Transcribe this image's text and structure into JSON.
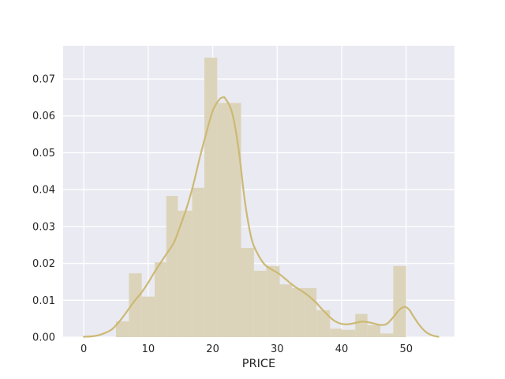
{
  "chart_data": {
    "type": "histogram",
    "title": "",
    "xlabel": "PRICE",
    "ylabel": "",
    "xlim": [
      -3.2,
      57.5
    ],
    "ylim": [
      0,
      0.079
    ],
    "grid": true,
    "x_ticks": [
      0,
      10,
      20,
      30,
      40,
      50
    ],
    "y_ticks": [
      0.0,
      0.01,
      0.02,
      0.03,
      0.04,
      0.05,
      0.06,
      0.07
    ],
    "y_tick_labels": [
      "0.00",
      "0.01",
      "0.02",
      "0.03",
      "0.04",
      "0.05",
      "0.06",
      "0.07"
    ],
    "bar_color": "#dcd4ba",
    "line_color": "#ccb974",
    "background_color": "#eaeaf2",
    "bins": [
      {
        "x0": 5.0,
        "x1": 7.0,
        "density": 0.0043
      },
      {
        "x0": 7.0,
        "x1": 9.0,
        "density": 0.0173
      },
      {
        "x0": 9.0,
        "x1": 11.0,
        "density": 0.011
      },
      {
        "x0": 11.0,
        "x1": 12.8,
        "density": 0.0203
      },
      {
        "x0": 12.8,
        "x1": 14.6,
        "density": 0.0383
      },
      {
        "x0": 14.6,
        "x1": 16.8,
        "density": 0.0343
      },
      {
        "x0": 16.8,
        "x1": 18.7,
        "density": 0.0405
      },
      {
        "x0": 18.7,
        "x1": 20.7,
        "density": 0.0758
      },
      {
        "x0": 20.7,
        "x1": 24.4,
        "density": 0.0635
      },
      {
        "x0": 24.4,
        "x1": 26.4,
        "density": 0.0242
      },
      {
        "x0": 26.4,
        "x1": 28.3,
        "density": 0.018
      },
      {
        "x0": 28.3,
        "x1": 30.4,
        "density": 0.0193
      },
      {
        "x0": 30.4,
        "x1": 32.3,
        "density": 0.0143
      },
      {
        "x0": 32.3,
        "x1": 34.2,
        "density": 0.0133
      },
      {
        "x0": 34.2,
        "x1": 36.1,
        "density": 0.0133
      },
      {
        "x0": 36.1,
        "x1": 38.2,
        "density": 0.0073
      },
      {
        "x0": 38.2,
        "x1": 40.0,
        "density": 0.0023
      },
      {
        "x0": 40.0,
        "x1": 42.1,
        "density": 0.002
      },
      {
        "x0": 42.1,
        "x1": 44.0,
        "density": 0.0063
      },
      {
        "x0": 44.0,
        "x1": 46.0,
        "density": 0.0033
      },
      {
        "x0": 46.0,
        "x1": 48.0,
        "density": 0.001
      },
      {
        "x0": 48.0,
        "x1": 50.0,
        "density": 0.0193
      }
    ],
    "kde": {
      "x": [
        0,
        2,
        4,
        5,
        6,
        7,
        8,
        9,
        10,
        11,
        12,
        13,
        14,
        15,
        16,
        17,
        18,
        19,
        20,
        21,
        21.6,
        22,
        23,
        24,
        25,
        26,
        27,
        28,
        29,
        30,
        31,
        32,
        33,
        34,
        35,
        36,
        37,
        38,
        39,
        40,
        41,
        42,
        43,
        44,
        45,
        46,
        47,
        48,
        49,
        49.8,
        50.5,
        51,
        52,
        53,
        54,
        55
      ],
      "y": [
        0.0001,
        0.0004,
        0.0017,
        0.0032,
        0.0053,
        0.0077,
        0.0101,
        0.0122,
        0.0148,
        0.0177,
        0.0204,
        0.023,
        0.0257,
        0.0303,
        0.0353,
        0.0414,
        0.0487,
        0.0553,
        0.0614,
        0.0644,
        0.065,
        0.0646,
        0.0609,
        0.0512,
        0.0367,
        0.0268,
        0.0225,
        0.0198,
        0.0185,
        0.0175,
        0.0162,
        0.0147,
        0.0134,
        0.0123,
        0.011,
        0.0094,
        0.0075,
        0.0057,
        0.0043,
        0.0036,
        0.0035,
        0.0038,
        0.0042,
        0.0041,
        0.0037,
        0.0033,
        0.0036,
        0.0054,
        0.0075,
        0.0082,
        0.0074,
        0.006,
        0.0034,
        0.0015,
        0.0005,
        0.0001
      ]
    }
  }
}
